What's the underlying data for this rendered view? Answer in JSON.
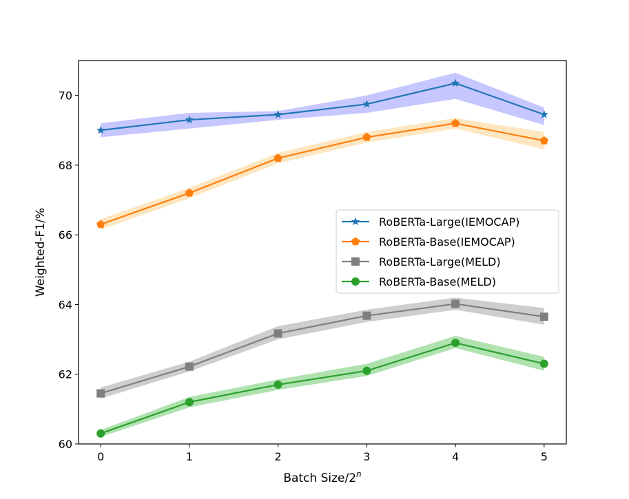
{
  "chart_data": {
    "type": "line",
    "xlabel": "Batch Size/2",
    "xlabel_sup": "n",
    "ylabel": "Weighted-F1/%",
    "x": [
      0,
      1,
      2,
      3,
      4,
      5
    ],
    "xticks": [
      "0",
      "1",
      "2",
      "3",
      "4",
      "5"
    ],
    "yticks": [
      "60",
      "62",
      "64",
      "66",
      "68",
      "70"
    ],
    "ytick_values": [
      60,
      62,
      64,
      66,
      68,
      70
    ],
    "xlim": [
      -0.25,
      5.25
    ],
    "ylim": [
      60,
      71
    ],
    "grid": false,
    "legend_position": "center-right",
    "series": [
      {
        "name": "RoBERTa-Large(IEMOCAP)",
        "color": "#1f77b4",
        "band_color": "#9999ff",
        "marker": "star",
        "values": [
          69.0,
          69.3,
          69.45,
          69.75,
          70.35,
          69.45
        ],
        "lower": [
          68.8,
          69.05,
          69.3,
          69.5,
          69.9,
          69.15
        ],
        "upper": [
          69.2,
          69.5,
          69.55,
          70.0,
          70.65,
          69.65
        ]
      },
      {
        "name": "RoBERTa-Base(IEMOCAP)",
        "color": "#ff7f0e",
        "band_color": "#fdd28e",
        "marker": "pentagon",
        "values": [
          66.3,
          67.2,
          68.2,
          68.8,
          69.2,
          68.7
        ],
        "lower": [
          66.15,
          67.05,
          68.05,
          68.65,
          69.05,
          68.45
        ],
        "upper": [
          66.45,
          67.35,
          68.35,
          68.95,
          69.35,
          68.95
        ]
      },
      {
        "name": "RoBERTa-Large(MELD)",
        "color": "#7f7f7f",
        "band_color": "#a6a6a6",
        "marker": "square",
        "values": [
          61.45,
          62.22,
          63.17,
          63.68,
          64.02,
          63.65
        ],
        "lower": [
          61.3,
          62.08,
          63.0,
          63.5,
          63.85,
          63.42
        ],
        "upper": [
          61.62,
          62.36,
          63.38,
          63.85,
          64.2,
          63.9
        ]
      },
      {
        "name": "RoBERTa-Base(MELD)",
        "color": "#2ca02c",
        "band_color": "#6fcb6f",
        "marker": "circle",
        "values": [
          60.3,
          61.2,
          61.7,
          62.1,
          62.9,
          62.3
        ],
        "lower": [
          60.2,
          61.05,
          61.55,
          61.95,
          62.75,
          62.1
        ],
        "upper": [
          60.4,
          61.35,
          61.85,
          62.3,
          63.1,
          62.5
        ]
      }
    ]
  }
}
